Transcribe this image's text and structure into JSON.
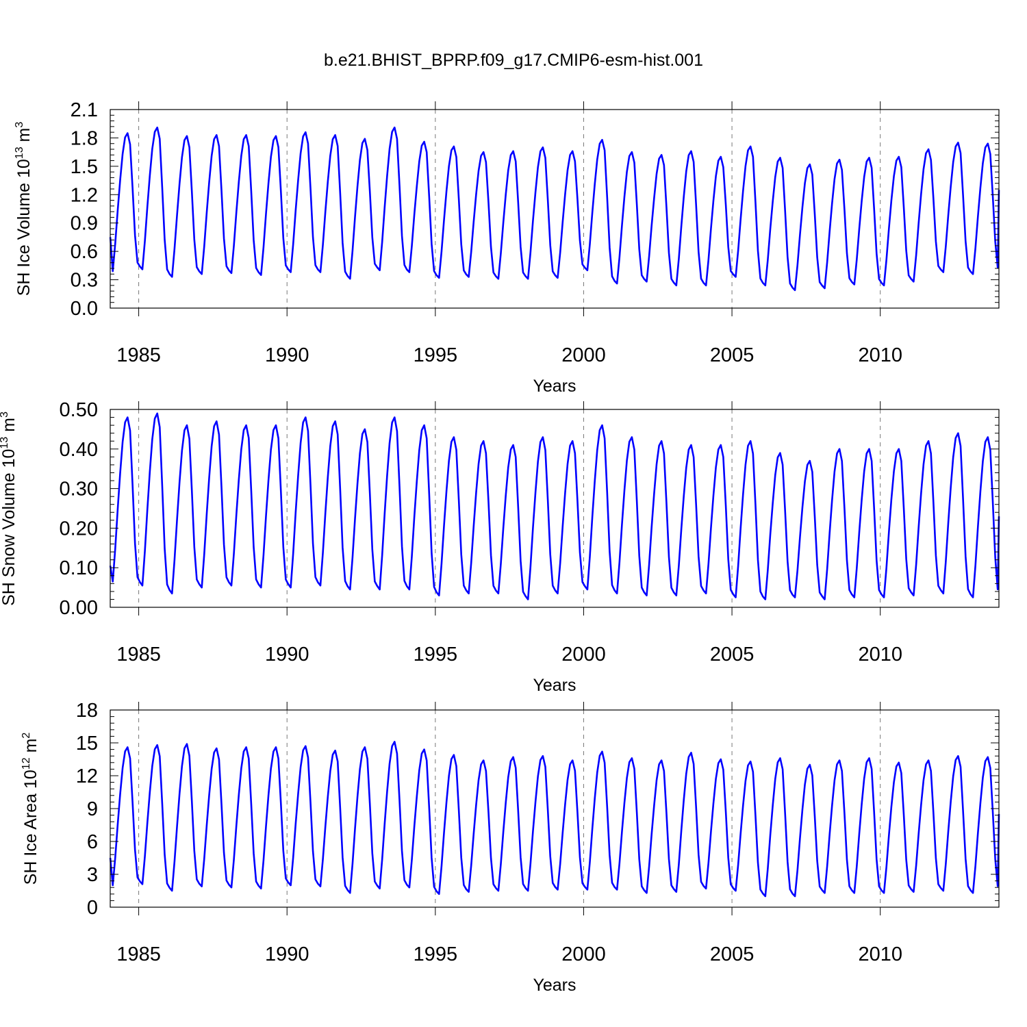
{
  "title": "b.e21.BHIST_BPRP.f09_g17.CMIP6-esm-hist.001",
  "line_color": "#0000ff",
  "chart_data": [
    {
      "type": "line",
      "name": "ice-volume",
      "ylabel": {
        "main": "SH Ice Volume 10",
        "exp": "13",
        "unit": " m",
        "unit_exp": "3"
      },
      "xlabel": "Years",
      "xlim": [
        1984.04,
        2014.0
      ],
      "ylim": [
        0.0,
        2.1
      ],
      "xticks": [
        1985,
        1990,
        1995,
        2000,
        2005,
        2010
      ],
      "xtick_labels": [
        "1985",
        "1990",
        "1995",
        "2000",
        "2005",
        "2010"
      ],
      "yticks": [
        0.0,
        0.3,
        0.6,
        0.9,
        1.2,
        1.5,
        1.8,
        2.1
      ],
      "ytick_labels": [
        "0.0",
        "0.3",
        "0.6",
        "0.9",
        "1.2",
        "1.5",
        "1.8",
        "2.1"
      ],
      "grid": "vertical dashed at major x ticks",
      "start_value": 0.75,
      "end_value": 1.25,
      "peaks": [
        1.85,
        1.91,
        1.82,
        1.83,
        1.83,
        1.82,
        1.86,
        1.83,
        1.79,
        1.91,
        1.76,
        1.71,
        1.65,
        1.66,
        1.7,
        1.66,
        1.78,
        1.65,
        1.62,
        1.66,
        1.6,
        1.71,
        1.59,
        1.52,
        1.57,
        1.59,
        1.6,
        1.68,
        1.75,
        1.74
      ],
      "troughs": [
        0.39,
        0.41,
        0.33,
        0.36,
        0.37,
        0.35,
        0.38,
        0.38,
        0.31,
        0.4,
        0.38,
        0.32,
        0.33,
        0.31,
        0.31,
        0.32,
        0.4,
        0.26,
        0.28,
        0.24,
        0.24,
        0.33,
        0.24,
        0.19,
        0.21,
        0.25,
        0.24,
        0.28,
        0.38,
        0.36
      ]
    },
    {
      "type": "line",
      "name": "snow-volume",
      "ylabel": {
        "main": "SH Snow Volume 10",
        "exp": "13",
        "unit": " m",
        "unit_exp": "3"
      },
      "xlabel": "Years",
      "xlim": [
        1984.04,
        2014.0
      ],
      "ylim": [
        0.0,
        0.5
      ],
      "xticks": [
        1985,
        1990,
        1995,
        2000,
        2005,
        2010
      ],
      "xtick_labels": [
        "1985",
        "1990",
        "1995",
        "2000",
        "2005",
        "2010"
      ],
      "yticks": [
        0.0,
        0.1,
        0.2,
        0.3,
        0.4,
        0.5
      ],
      "ytick_labels": [
        "0.00",
        "0.10",
        "0.20",
        "0.30",
        "0.40",
        "0.50"
      ],
      "grid": "vertical dashed at major x ticks",
      "start_value": 0.105,
      "end_value": 0.23,
      "peaks": [
        0.48,
        0.49,
        0.46,
        0.47,
        0.46,
        0.46,
        0.48,
        0.47,
        0.45,
        0.48,
        0.46,
        0.43,
        0.42,
        0.41,
        0.43,
        0.42,
        0.46,
        0.43,
        0.42,
        0.41,
        0.41,
        0.42,
        0.39,
        0.37,
        0.4,
        0.4,
        0.4,
        0.42,
        0.44,
        0.43
      ],
      "troughs": [
        0.065,
        0.055,
        0.035,
        0.05,
        0.055,
        0.05,
        0.05,
        0.055,
        0.045,
        0.045,
        0.045,
        0.03,
        0.035,
        0.035,
        0.02,
        0.035,
        0.045,
        0.035,
        0.03,
        0.03,
        0.035,
        0.025,
        0.02,
        0.025,
        0.02,
        0.025,
        0.025,
        0.03,
        0.035,
        0.025
      ]
    },
    {
      "type": "line",
      "name": "ice-area",
      "ylabel": {
        "main": "SH Ice Area 10",
        "exp": "12",
        "unit": " m",
        "unit_exp": "2"
      },
      "xlabel": "Years",
      "xlim": [
        1984.04,
        2014.0
      ],
      "ylim": [
        0,
        18
      ],
      "xticks": [
        1985,
        1990,
        1995,
        2000,
        2005,
        2010
      ],
      "xtick_labels": [
        "1985",
        "1990",
        "1995",
        "2000",
        "2005",
        "2010"
      ],
      "yticks": [
        0,
        3,
        6,
        9,
        12,
        15,
        18
      ],
      "ytick_labels": [
        "0",
        "3",
        "6",
        "9",
        "12",
        "15",
        "18"
      ],
      "grid": "vertical dashed at major x ticks",
      "start_value": 4.5,
      "end_value": 8.5,
      "peaks": [
        14.6,
        14.8,
        14.9,
        14.5,
        14.6,
        14.6,
        14.7,
        14.3,
        14.6,
        15.1,
        14.4,
        13.9,
        13.4,
        13.7,
        13.8,
        13.4,
        14.2,
        13.6,
        13.4,
        14.1,
        13.5,
        13.3,
        13.6,
        13.0,
        13.4,
        13.6,
        13.2,
        13.4,
        13.8,
        13.7
      ],
      "troughs": [
        2.0,
        2.1,
        1.5,
        1.9,
        1.8,
        1.7,
        2.0,
        1.9,
        1.3,
        1.7,
        1.8,
        1.2,
        1.4,
        1.5,
        1.5,
        1.6,
        1.6,
        1.6,
        1.3,
        1.4,
        1.7,
        1.5,
        1.0,
        1.0,
        1.3,
        1.3,
        1.3,
        1.4,
        1.5,
        1.3
      ]
    }
  ]
}
